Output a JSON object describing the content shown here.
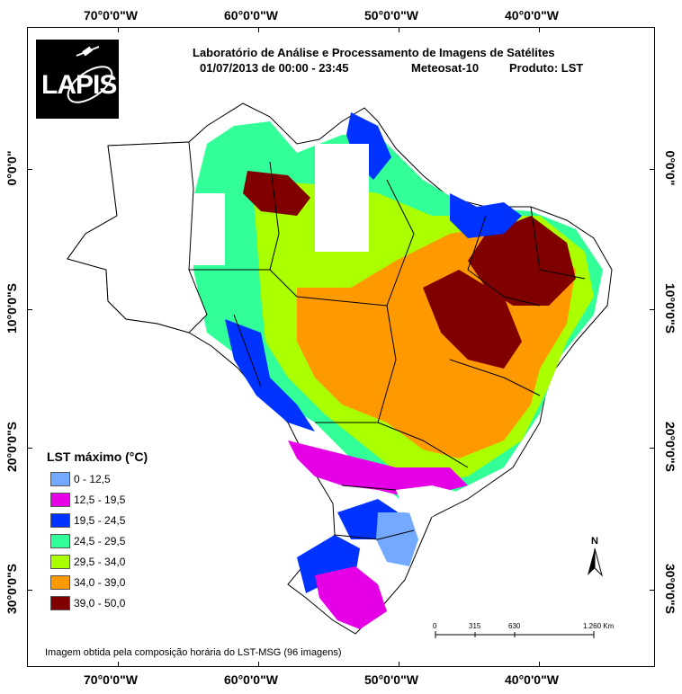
{
  "header": {
    "line1": "Laboratório de Análise e Processamento de Imagens de Satélites",
    "date": "01/07/2013  de  00:00 - 23:45",
    "satellite": "Meteosat-10",
    "product": "Produto: LST"
  },
  "logo": {
    "text": "LAPIS",
    "icon": "satellite-icon"
  },
  "grid": {
    "lon_labels": [
      "70°0'0\"W",
      "60°0'0\"W",
      "50°0'0\"W",
      "40°0'0\"W"
    ],
    "lat_labels": [
      "0°0'0\"",
      "10°0'0\"S",
      "20°0'0\"S",
      "30°0'0\"S"
    ]
  },
  "legend": {
    "title": "LST máximo (°C)",
    "items": [
      {
        "label": "0 - 12,5",
        "color": "#73aaff"
      },
      {
        "label": "12,5 - 19,5",
        "color": "#e600e6"
      },
      {
        "label": "19,5 - 24,5",
        "color": "#0033ff"
      },
      {
        "label": "24,5 - 29,5",
        "color": "#33ff99"
      },
      {
        "label": "29,5 - 34,0",
        "color": "#aaff00"
      },
      {
        "label": "34,0 - 39,0",
        "color": "#ff9900"
      },
      {
        "label": "39,0 - 50,0",
        "color": "#800000"
      }
    ]
  },
  "north_arrow": {
    "label": "N"
  },
  "scale_bar": {
    "labels": [
      "0",
      "315",
      "630",
      "1.260 Km"
    ]
  },
  "footer": "Imagem obtida pela composição horária do LST-MSG (96 imagens)"
}
